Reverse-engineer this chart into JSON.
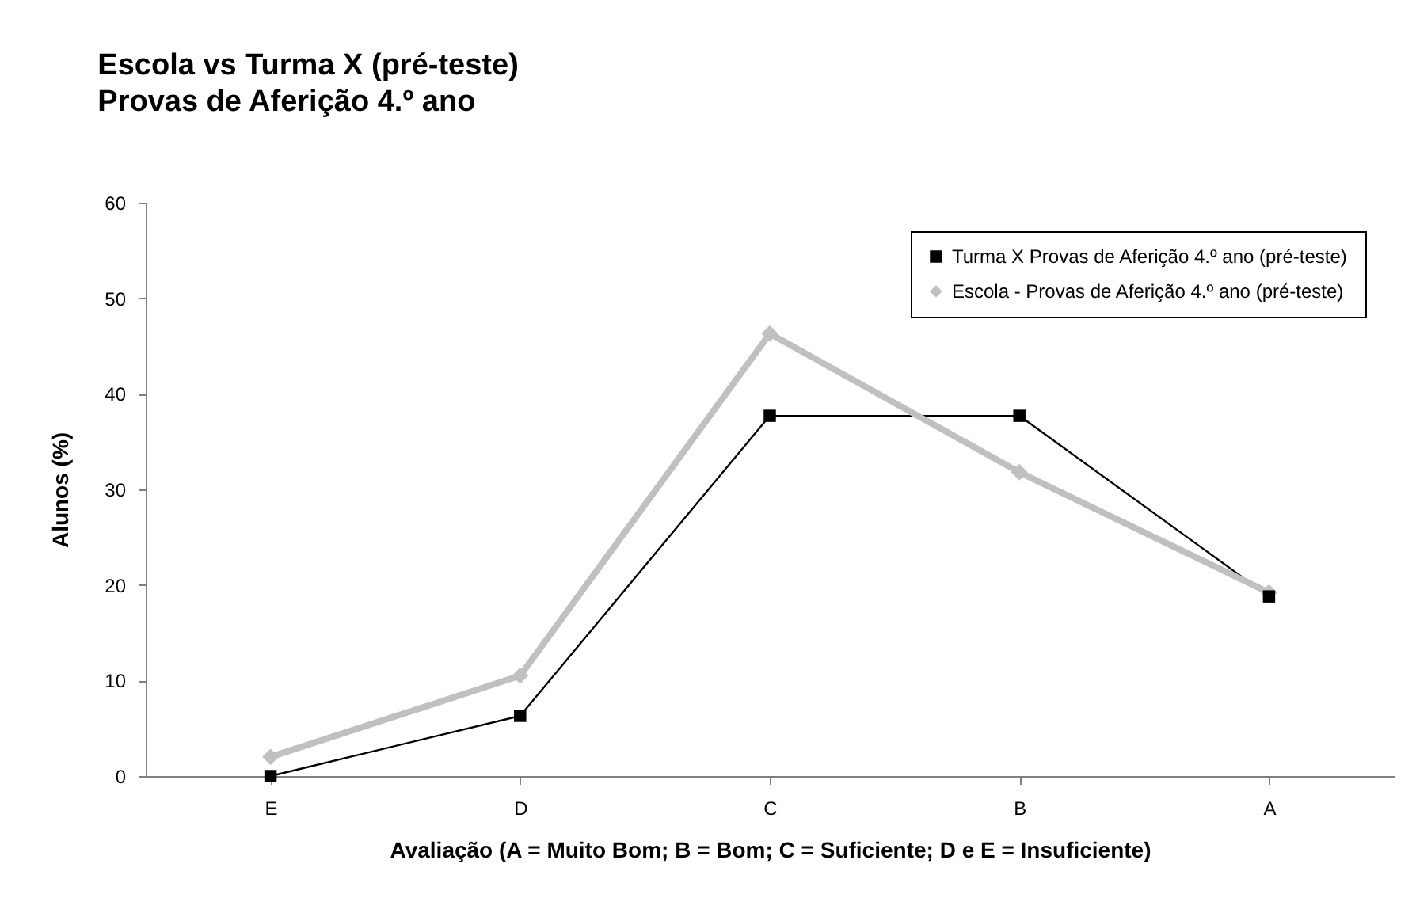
{
  "chart_data": {
    "type": "line",
    "title": "Escola vs Turma X  (pré-teste)",
    "subtitle": "Provas de Aferição 4.º ano",
    "xlabel": "Avaliação  (A = Muito Bom;  B = Bom; C = Suficiente; D e E = Insuficiente)",
    "ylabel": "Alunos (%)",
    "categories": [
      "E",
      "D",
      "C",
      "B",
      "A"
    ],
    "series": [
      {
        "name": "Turma X Provas de Aferição 4.º ano (pré-teste)",
        "color": "#000000",
        "marker": "square",
        "values": [
          0,
          6.3,
          37.7,
          37.7,
          18.8
        ]
      },
      {
        "name": "Escola - Provas de Aferição 4.º ano (pré-teste)",
        "color": "#c0c0c0",
        "marker": "diamond",
        "values": [
          2.0,
          10.5,
          46.3,
          31.8,
          19.2
        ]
      }
    ],
    "ylim": [
      0,
      60
    ],
    "yticks": [
      0,
      10,
      20,
      30,
      40,
      50,
      60
    ],
    "grid": false,
    "legend": "top right"
  }
}
